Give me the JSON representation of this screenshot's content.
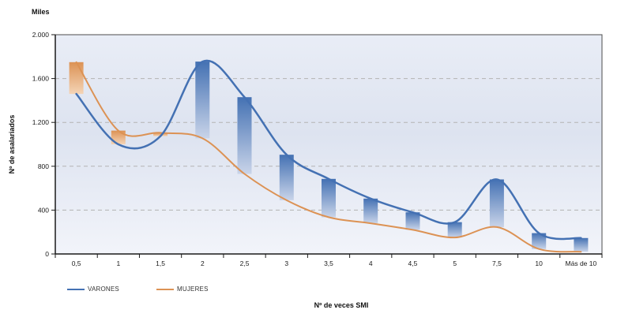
{
  "title": "Miles",
  "y_axis_label": "Nº de asalariados",
  "x_axis_label": "Nº de veces SMI",
  "legend": {
    "items": [
      {
        "label": "VARONES",
        "color": "#4471b3"
      },
      {
        "label": "MUJERES",
        "color": "#dc9254"
      }
    ],
    "position": "bottom-left"
  },
  "chart_data": {
    "type": "line",
    "title": "Miles",
    "xlabel": "Nº de veces SMI",
    "ylabel": "Nº de asalariados",
    "categories": [
      "0,5",
      "1",
      "1,5",
      "2",
      "2,5",
      "3",
      "3,5",
      "4",
      "4,5",
      "5",
      "7,5",
      "10",
      "Más de 10"
    ],
    "series": [
      {
        "name": "VARONES",
        "color": "#4471b3",
        "band_fade": "#c9d4e9",
        "values": [
          1460,
          1000,
          1075,
          1755,
          1430,
          905,
          685,
          505,
          380,
          290,
          680,
          190,
          145
        ]
      },
      {
        "name": "MUJERES",
        "color": "#dc9254",
        "band_fade": "#f4d4b6",
        "values": [
          1750,
          1125,
          1105,
          1055,
          730,
          490,
          335,
          280,
          220,
          150,
          245,
          45,
          20
        ]
      }
    ],
    "units": "thousands of wage earners",
    "ylim": [
      0,
      2000
    ],
    "y_ticks": [
      {
        "value": 0,
        "label": "0"
      },
      {
        "value": 400,
        "label": "400"
      },
      {
        "value": 800,
        "label": "800"
      },
      {
        "value": 1200,
        "label": "1.200"
      },
      {
        "value": 1600,
        "label": "1.600"
      },
      {
        "value": 2000,
        "label": "2.000"
      }
    ],
    "grid": "horizontal-dashed",
    "gridline_color": "#b3b3b3",
    "plot_bg_top": "#e9edf6",
    "plot_bg_mid": "#dde3f0",
    "plot_bg_bottom": "#f2f4fa",
    "border_color": "#4d4d4d",
    "axis_color": "#1a1a1a",
    "bands_between_series": true,
    "legend_position": "bottom-left"
  }
}
